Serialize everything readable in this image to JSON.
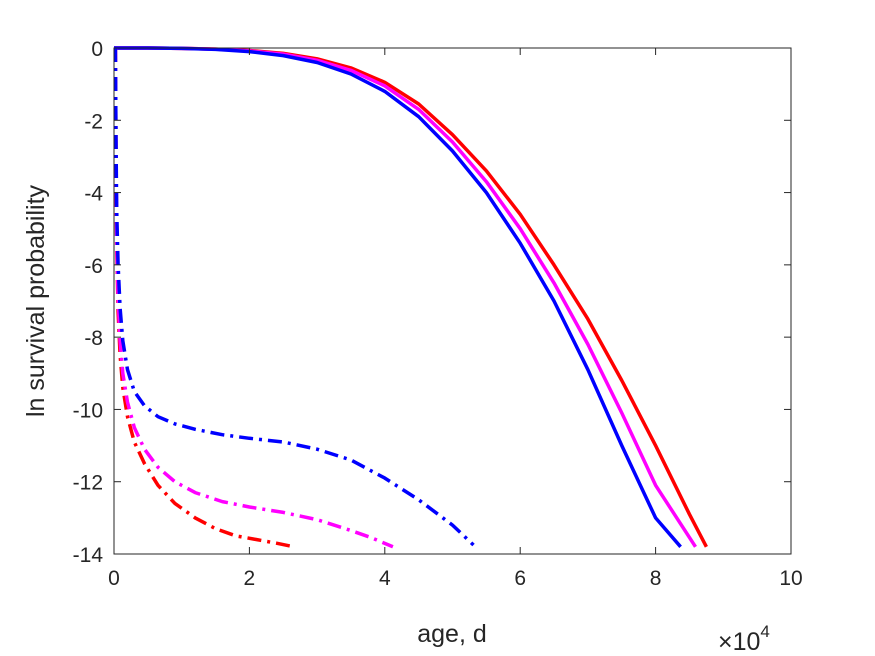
{
  "chart_data": {
    "type": "line",
    "title": "",
    "xlabel": "age, d",
    "ylabel": "ln survival probability",
    "x_exponent_label": {
      "base": "×10",
      "power": "4"
    },
    "xlim": [
      0,
      10
    ],
    "ylim": [
      -14,
      0
    ],
    "x_ticks": [
      "0",
      "2",
      "4",
      "6",
      "8",
      "10"
    ],
    "y_ticks": [
      "0",
      "-2",
      "-4",
      "-6",
      "-8",
      "-10",
      "-12",
      "-14"
    ],
    "grid": false,
    "series": [
      {
        "color": "#ff0000",
        "style": "solid",
        "x": [
          0,
          0.5,
          1,
          1.5,
          2,
          2.5,
          3,
          3.5,
          4,
          4.5,
          5,
          5.5,
          6,
          6.5,
          7,
          7.5,
          8,
          8.5,
          8.75
        ],
        "y": [
          0,
          0,
          -0.01,
          -0.03,
          -0.07,
          -0.15,
          -0.3,
          -0.55,
          -0.95,
          -1.55,
          -2.4,
          -3.4,
          -4.6,
          -6.0,
          -7.5,
          -9.2,
          -11.0,
          -12.9,
          -13.8
        ]
      },
      {
        "color": "#ff00ff",
        "style": "solid",
        "x": [
          0,
          0.5,
          1,
          1.5,
          2,
          2.5,
          3,
          3.5,
          4,
          4.5,
          5,
          5.5,
          6,
          6.5,
          7,
          7.5,
          8,
          8.59
        ],
        "y": [
          0,
          0,
          -0.01,
          -0.03,
          -0.08,
          -0.17,
          -0.34,
          -0.62,
          -1.05,
          -1.7,
          -2.6,
          -3.7,
          -5.0,
          -6.5,
          -8.2,
          -10.1,
          -12.1,
          -13.8
        ]
      },
      {
        "color": "#0000ff",
        "style": "solid",
        "x": [
          0,
          0.5,
          1,
          1.5,
          2,
          2.5,
          3,
          3.5,
          4,
          4.5,
          5,
          5.5,
          6,
          6.5,
          7,
          7.5,
          8,
          8.37
        ],
        "y": [
          0,
          0,
          -0.01,
          -0.04,
          -0.1,
          -0.21,
          -0.4,
          -0.72,
          -1.2,
          -1.9,
          -2.85,
          -4.0,
          -5.4,
          -7.0,
          -8.9,
          -11.0,
          -13.0,
          -13.8
        ]
      },
      {
        "color": "#ff0000",
        "style": "dashdot",
        "x": [
          0.02,
          0.03,
          0.04,
          0.06,
          0.09,
          0.13,
          0.2,
          0.3,
          0.45,
          0.65,
          0.9,
          1.2,
          1.5,
          1.8,
          2.1,
          2.4,
          2.66
        ],
        "y": [
          0,
          -3.0,
          -5.5,
          -7.3,
          -8.5,
          -9.4,
          -10.2,
          -10.9,
          -11.5,
          -12.1,
          -12.6,
          -13.0,
          -13.3,
          -13.5,
          -13.6,
          -13.7,
          -13.8
        ]
      },
      {
        "color": "#ff00ff",
        "style": "dashdot",
        "x": [
          0.02,
          0.03,
          0.04,
          0.06,
          0.09,
          0.13,
          0.2,
          0.3,
          0.45,
          0.65,
          0.9,
          1.2,
          1.6,
          2.0,
          2.5,
          3.0,
          3.5,
          3.8,
          4.12
        ],
        "y": [
          0,
          -3.0,
          -5.2,
          -6.9,
          -8.1,
          -9.0,
          -9.8,
          -10.5,
          -11.1,
          -11.6,
          -12.0,
          -12.3,
          -12.55,
          -12.7,
          -12.85,
          -13.05,
          -13.35,
          -13.55,
          -13.8
        ]
      },
      {
        "color": "#0000ff",
        "style": "dashdot",
        "x": [
          0.02,
          0.03,
          0.04,
          0.06,
          0.09,
          0.13,
          0.2,
          0.3,
          0.45,
          0.65,
          0.9,
          1.2,
          1.6,
          2.0,
          2.5,
          3.0,
          3.5,
          4.0,
          4.5,
          5.0,
          5.31
        ],
        "y": [
          0,
          -2.5,
          -4.5,
          -6.0,
          -7.2,
          -8.1,
          -8.9,
          -9.5,
          -9.9,
          -10.2,
          -10.4,
          -10.55,
          -10.7,
          -10.8,
          -10.9,
          -11.1,
          -11.4,
          -11.9,
          -12.5,
          -13.2,
          -13.75
        ]
      }
    ]
  }
}
